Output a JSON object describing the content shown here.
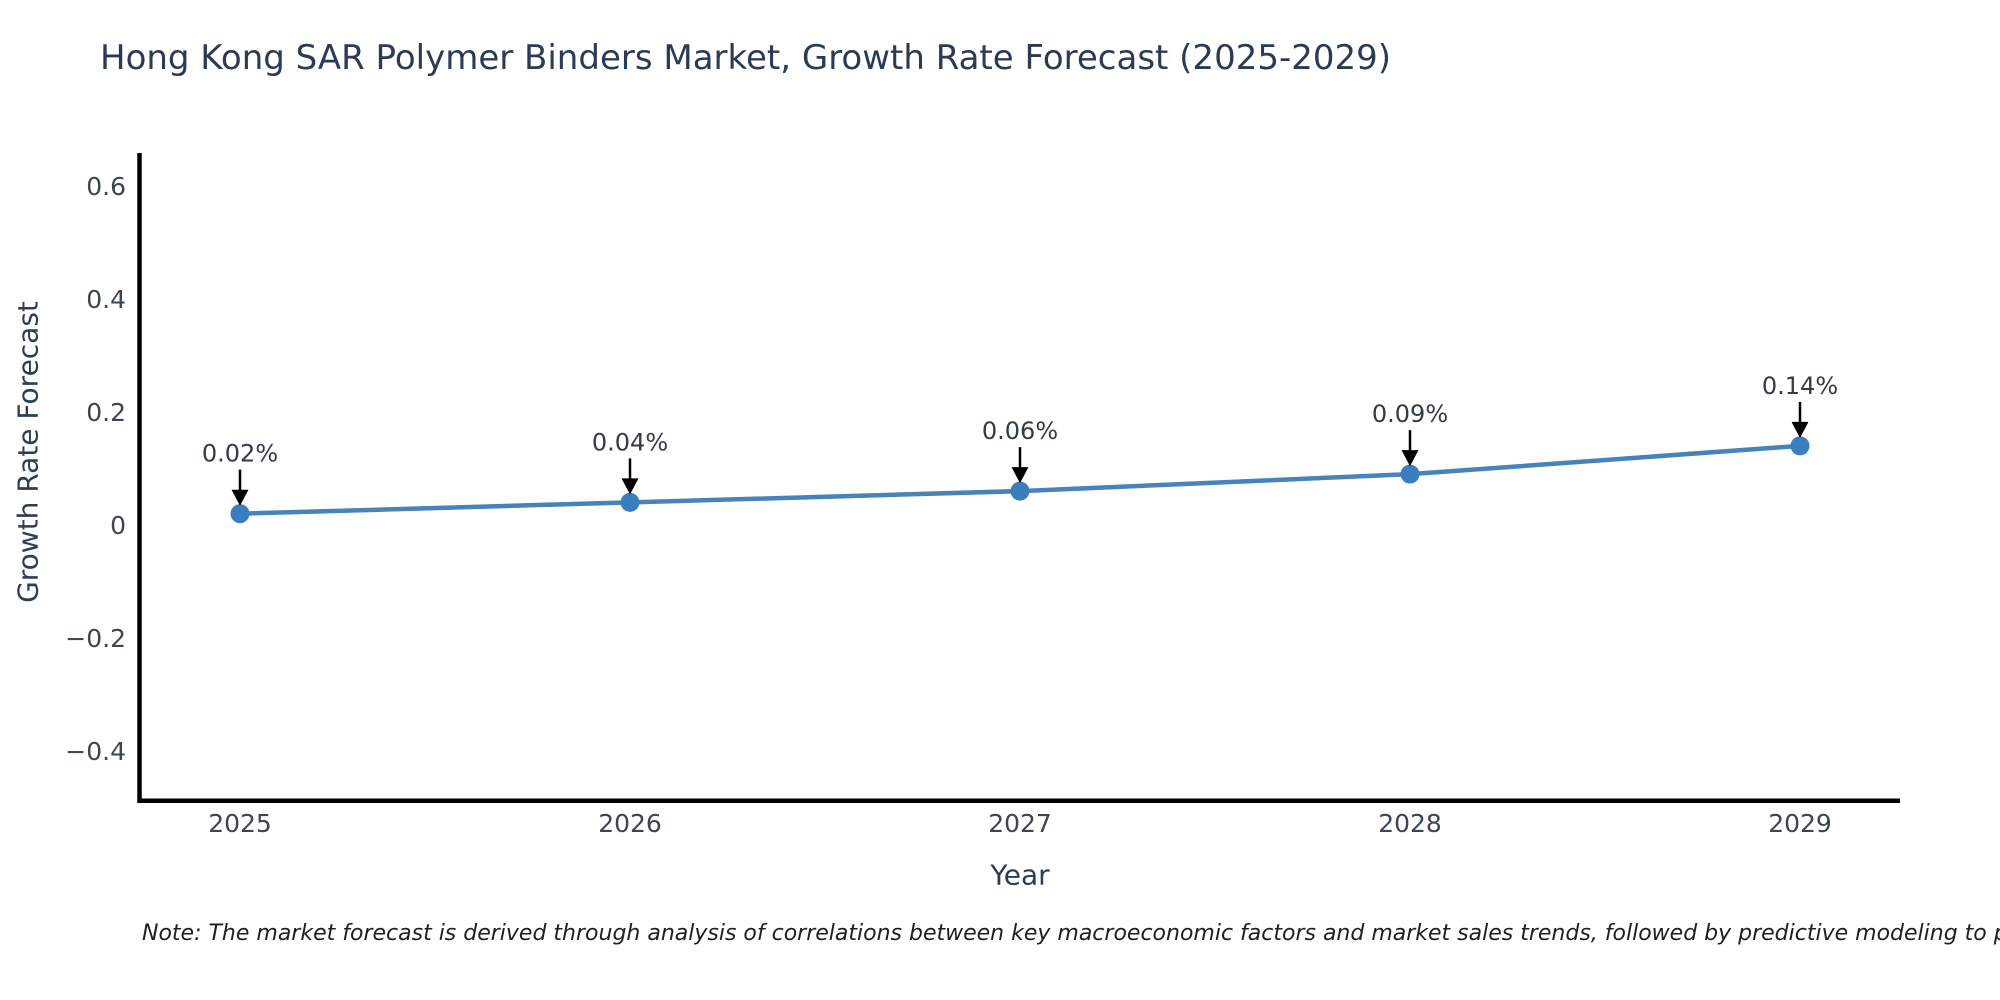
{
  "chart": {
    "title": "Hong Kong SAR Polymer Binders Market, Growth Rate Forecast (2025-2029)",
    "xlabel": "Year",
    "ylabel": "Growth Rate Forecast"
  },
  "note": {
    "text": "Note: The market forecast is derived through analysis of correlations between key macroeconomic factors and market sales trends, followed by predictive modeling to project future sal"
  },
  "chart_data": {
    "type": "line",
    "title": "Hong Kong SAR Polymer Binders Market, Growth Rate Forecast (2025-2029)",
    "xlabel": "Year",
    "ylabel": "Growth Rate Forecast",
    "categories": [
      "2025",
      "2026",
      "2027",
      "2028",
      "2029"
    ],
    "series": [
      {
        "name": "Growth Rate Forecast",
        "values": [
          0.02,
          0.04,
          0.06,
          0.09,
          0.14
        ],
        "unit": "%"
      }
    ],
    "point_labels": [
      "0.02%",
      "0.04%",
      "0.06%",
      "0.09%",
      "0.14%"
    ],
    "yticks": {
      "values": [
        0.6,
        0.4,
        0.2,
        0,
        -0.2,
        -0.4
      ],
      "labels": [
        "0.6",
        "0.4",
        "0.2",
        "0",
        "−0.2",
        "−0.4"
      ]
    },
    "ylim": [
      -0.49,
      0.66
    ],
    "grid": false,
    "legend": "none",
    "marker": "circle",
    "annotation_arrows": true,
    "line_color": "#4583ba",
    "marker_color": "#3a7ebf",
    "arrow_color": "#000000",
    "axis_color": "#000000"
  }
}
